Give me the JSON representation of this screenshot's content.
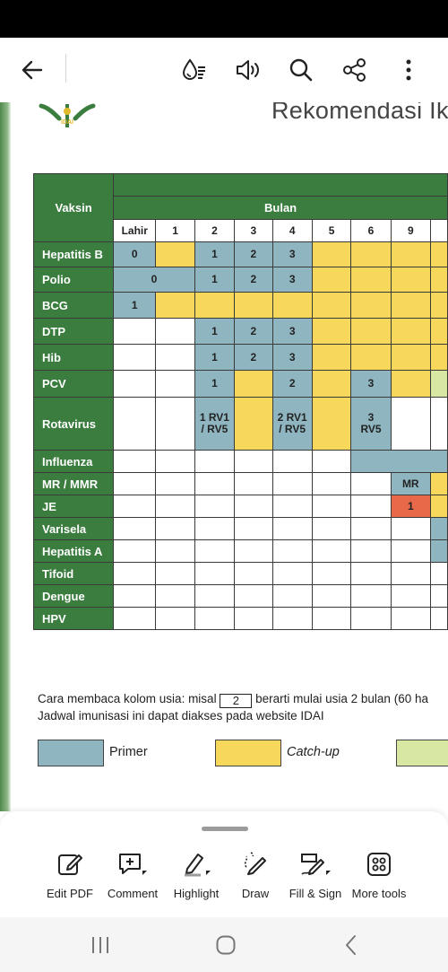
{
  "app": {
    "toolbar": {
      "back_icon": "arrow-left-icon",
      "icons": [
        "liquid-mode-icon",
        "read-aloud-icon",
        "search-icon",
        "share-icon",
        "more-options-icon"
      ]
    }
  },
  "document": {
    "heading": "Rekomendasi Ik",
    "logo_text": "IDAI",
    "table": {
      "vaccine_header": "Vaksin",
      "month_header": "Bulan",
      "columns": [
        "Lahir",
        "1",
        "2",
        "3",
        "4",
        "5",
        "6",
        "9"
      ],
      "rows": [
        {
          "name": "Hepatitis B",
          "cells": [
            "0",
            "",
            "1",
            "2",
            "3",
            "",
            "",
            "",
            ""
          ]
        },
        {
          "name": "Polio",
          "cells": [
            "0",
            "1",
            "2",
            "3",
            "",
            "",
            "",
            ""
          ]
        },
        {
          "name": "BCG",
          "cells": [
            "1",
            "",
            "",
            "",
            "",
            "",
            "",
            "",
            ""
          ]
        },
        {
          "name": "DTP",
          "cells": [
            "",
            "",
            "1",
            "2",
            "3",
            "",
            "",
            "",
            ""
          ]
        },
        {
          "name": "Hib",
          "cells": [
            "",
            "",
            "1",
            "2",
            "3",
            "",
            "",
            "",
            ""
          ]
        },
        {
          "name": "PCV",
          "cells": [
            "",
            "",
            "1",
            "",
            "2",
            "",
            "3",
            "",
            ""
          ]
        },
        {
          "name": "Rotavirus",
          "cells": [
            "",
            "",
            "1 RV1 / RV5",
            "",
            "2 RV1 / RV5",
            "",
            "3 RV5",
            "",
            ""
          ]
        },
        {
          "name": "Influenza",
          "cells": [
            "",
            "",
            "",
            "",
            "",
            "",
            "",
            ""
          ]
        },
        {
          "name": "MR / MMR",
          "cells": [
            "",
            "",
            "",
            "",
            "",
            "",
            "",
            "MR",
            ""
          ]
        },
        {
          "name": "JE",
          "cells": [
            "",
            "",
            "",
            "",
            "",
            "",
            "",
            "1",
            ""
          ]
        },
        {
          "name": "Varisela",
          "cells": [
            "",
            "",
            "",
            "",
            "",
            "",
            "",
            "",
            ""
          ]
        },
        {
          "name": "Hepatitis A",
          "cells": [
            "",
            "",
            "",
            "",
            "",
            "",
            "",
            "",
            ""
          ]
        },
        {
          "name": "Tifoid",
          "cells": [
            "",
            "",
            "",
            "",
            "",
            "",
            "",
            "",
            ""
          ]
        },
        {
          "name": "Dengue",
          "cells": [
            "",
            "",
            "",
            "",
            "",
            "",
            "",
            "",
            ""
          ]
        },
        {
          "name": "HPV",
          "cells": [
            "",
            "",
            "",
            "",
            "",
            "",
            "",
            "",
            ""
          ]
        }
      ]
    },
    "note_line1_a": "Cara membaca kolom usia: misal",
    "note_box_value": "2",
    "note_line1_b": "berarti mulai usia 2 bulan (60 ha",
    "note_line2": "Jadwal imunisasi ini dapat diakses pada website IDAI",
    "legend": {
      "primer": "Primer",
      "catchup": "Catch-up"
    },
    "colors": {
      "header_green": "#3b7d3f",
      "primer_blue": "#8fb6c0",
      "catchup_yellow": "#f7d85b",
      "booster_green": "#d8e7a1",
      "red": "#e8694a"
    }
  },
  "bottom_tools": [
    {
      "label": "Edit PDF",
      "icon": "edit-pdf-icon"
    },
    {
      "label": "Comment",
      "icon": "comment-icon"
    },
    {
      "label": "Highlight",
      "icon": "highlight-icon"
    },
    {
      "label": "Draw",
      "icon": "draw-icon"
    },
    {
      "label": "Fill & Sign",
      "icon": "fill-sign-icon"
    },
    {
      "label": "More tools",
      "icon": "more-tools-icon"
    }
  ],
  "nav": {
    "icons": [
      "recent-apps-icon",
      "home-icon",
      "back-icon"
    ]
  }
}
